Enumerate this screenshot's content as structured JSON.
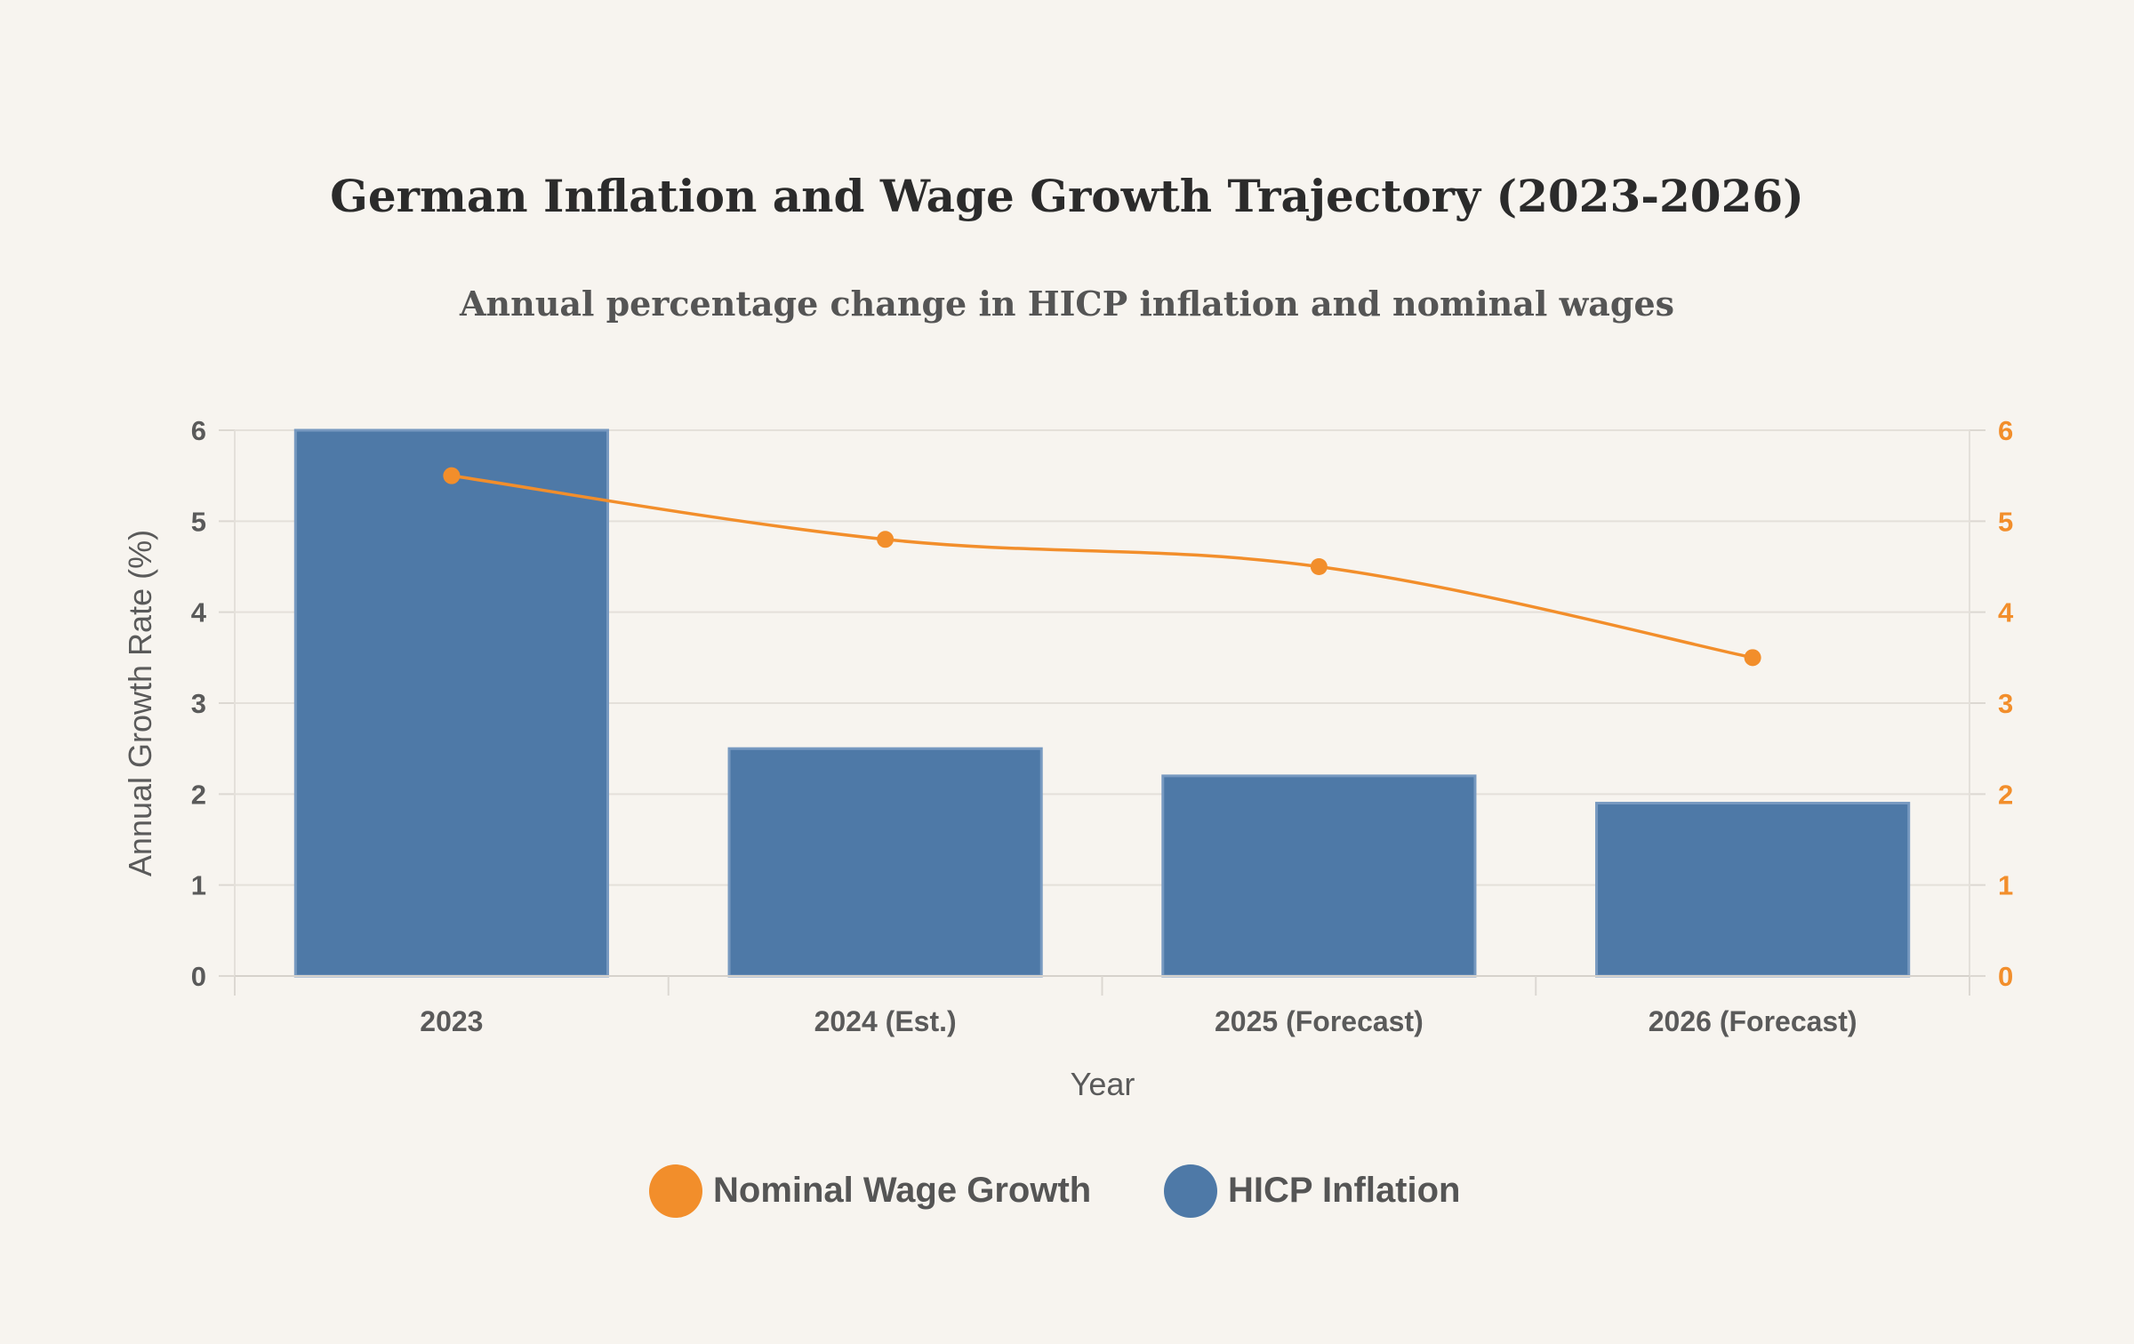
{
  "chart_data": {
    "type": "bar",
    "title": "German Inflation and Wage Growth Trajectory (2023-2026)",
    "subtitle": "Annual percentage change in HICP inflation and nominal wages",
    "xlabel": "Year",
    "ylabel": "Annual Growth Rate (%)",
    "y2label": "",
    "categories": [
      "2023",
      "2024 (Est.)",
      "2025 (Forecast)",
      "2026 (Forecast)"
    ],
    "ylim": [
      0,
      6
    ],
    "y2lim": [
      0,
      6
    ],
    "yticks": [
      "0",
      "1",
      "2",
      "3",
      "4",
      "5",
      "6"
    ],
    "y2ticks": [
      "0",
      "1",
      "2",
      "3",
      "4",
      "5",
      "6"
    ],
    "grid": true,
    "legend_position": "bottom-center",
    "series": [
      {
        "name": "HICP Inflation",
        "type": "bar",
        "axis": "left",
        "color": "#4e79a7",
        "values": [
          6.0,
          2.5,
          2.2,
          1.9
        ]
      },
      {
        "name": "Nominal Wage Growth",
        "type": "line",
        "axis": "right",
        "color": "#f28e2b",
        "values": [
          5.5,
          4.8,
          4.5,
          3.5
        ]
      }
    ],
    "legend": [
      "Nominal Wage Growth",
      "HICP Inflation"
    ]
  }
}
